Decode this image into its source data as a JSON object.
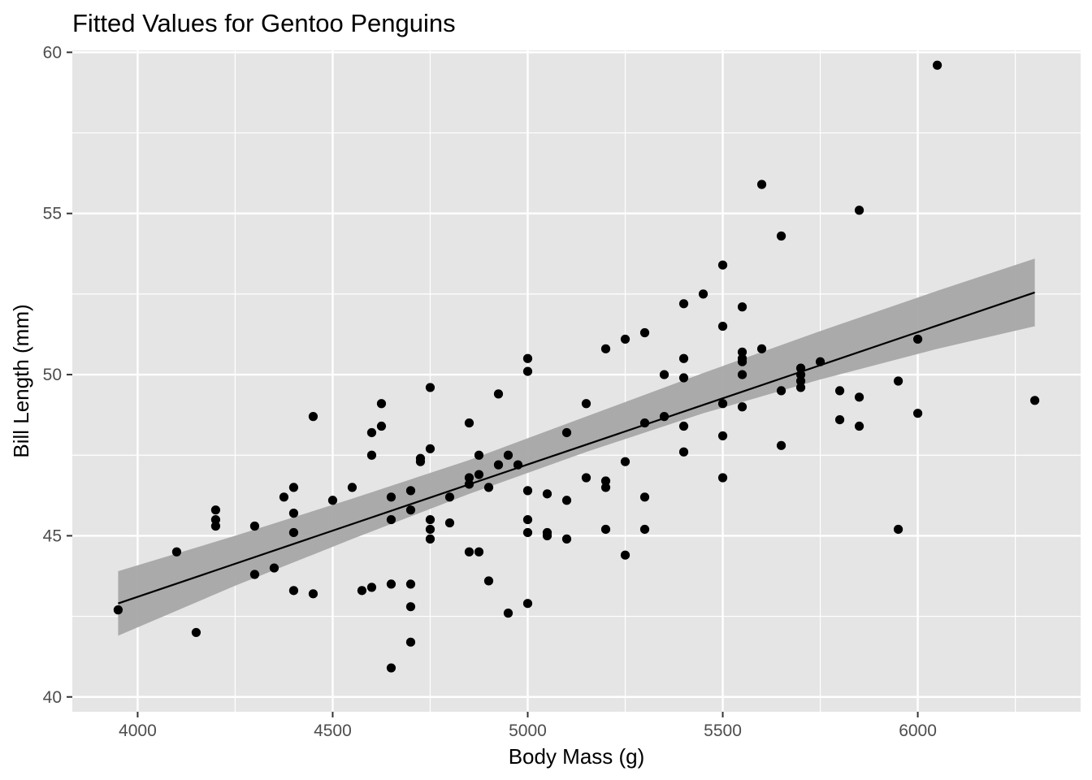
{
  "chart_data": {
    "type": "scatter",
    "title": "Fitted Values for Gentoo Penguins",
    "xlabel": "Body Mass (g)",
    "ylabel": "Bill Length (mm)",
    "xlim": [
      3832.5,
      6417.5
    ],
    "ylim": [
      39.54,
      60.06
    ],
    "xticks": [
      4000,
      4500,
      5000,
      5500,
      6000
    ],
    "xtick_labels": [
      "4000",
      "4500",
      "5000",
      "5500",
      "6000"
    ],
    "yticks": [
      40,
      45,
      50,
      55,
      60
    ],
    "ytick_labels": [
      "40",
      "45",
      "50",
      "55",
      "60"
    ],
    "grid": true,
    "legend": "none",
    "colors": {
      "panel": "#e5e5e5",
      "grid": "#ffffff",
      "points": "#000000",
      "fit_line": "#000000",
      "band": "#a6a6a6"
    },
    "series": [
      {
        "kind": "points",
        "x": [
          3950,
          4100,
          4150,
          4200,
          4200,
          4200,
          4300,
          4300,
          4350,
          4375,
          4400,
          4400,
          4400,
          4400,
          4450,
          4450,
          4500,
          4550,
          4575,
          4600,
          4600,
          4600,
          4625,
          4625,
          4650,
          4650,
          4650,
          4650,
          4700,
          4700,
          4700,
          4700,
          4700,
          4725,
          4725,
          4750,
          4750,
          4750,
          4750,
          4750,
          4800,
          4800,
          4850,
          4850,
          4850,
          4850,
          4875,
          4875,
          4875,
          4900,
          4900,
          4925,
          4925,
          4950,
          4950,
          4975,
          5000,
          5000,
          5000,
          5000,
          5000,
          5000,
          5050,
          5050,
          5050,
          5100,
          5100,
          5100,
          5150,
          5150,
          5200,
          5200,
          5200,
          5200,
          5250,
          5250,
          5250,
          5300,
          5300,
          5300,
          5300,
          5350,
          5350,
          5400,
          5400,
          5400,
          5400,
          5400,
          5450,
          5500,
          5500,
          5500,
          5500,
          5500,
          5550,
          5550,
          5550,
          5550,
          5550,
          5550,
          5600,
          5600,
          5650,
          5650,
          5650,
          5700,
          5700,
          5700,
          5700,
          5750,
          5800,
          5800,
          5850,
          5850,
          5850,
          5950,
          5950,
          6000,
          6000,
          6050,
          6300
        ],
        "y": [
          42.7,
          44.5,
          42.0,
          45.8,
          45.5,
          45.3,
          45.3,
          43.8,
          44.0,
          46.2,
          46.5,
          45.7,
          45.1,
          43.3,
          48.7,
          43.2,
          46.1,
          46.5,
          43.3,
          48.2,
          47.5,
          43.4,
          49.1,
          48.4,
          46.2,
          45.5,
          43.5,
          40.9,
          46.4,
          45.8,
          43.5,
          42.8,
          41.7,
          47.4,
          47.3,
          49.6,
          47.7,
          45.5,
          45.2,
          44.9,
          46.2,
          45.4,
          48.5,
          46.8,
          46.6,
          44.5,
          47.5,
          46.9,
          44.5,
          46.5,
          43.6,
          49.4,
          47.2,
          47.5,
          42.6,
          47.2,
          50.5,
          50.1,
          46.4,
          45.5,
          45.1,
          42.9,
          46.3,
          45.1,
          45.0,
          48.2,
          46.1,
          44.9,
          49.1,
          46.8,
          50.8,
          46.7,
          46.5,
          45.2,
          51.1,
          47.3,
          44.4,
          51.3,
          48.5,
          46.2,
          45.2,
          50.0,
          48.7,
          52.2,
          50.5,
          49.9,
          48.4,
          47.6,
          52.5,
          53.4,
          51.5,
          49.1,
          48.1,
          46.8,
          52.1,
          50.7,
          50.5,
          50.4,
          50.0,
          49.0,
          55.9,
          50.8,
          54.3,
          49.5,
          47.8,
          50.2,
          50.0,
          49.8,
          49.6,
          50.4,
          49.5,
          48.6,
          55.1,
          49.3,
          48.4,
          49.8,
          45.2,
          51.1,
          48.8,
          59.6,
          49.2
        ]
      },
      {
        "kind": "fit_line",
        "x": [
          3950,
          6300
        ],
        "y": [
          42.9,
          52.55
        ]
      },
      {
        "kind": "confidence_band",
        "x": [
          3950,
          4250,
          4550,
          4850,
          5150,
          5450,
          5750,
          6050,
          6300
        ],
        "lower": [
          41.9,
          43.45,
          44.9,
          46.3,
          47.6,
          48.8,
          49.85,
          50.8,
          51.5
        ],
        "upper": [
          43.9,
          45.0,
          46.15,
          47.35,
          48.7,
          50.05,
          51.35,
          52.6,
          53.6
        ]
      }
    ]
  }
}
